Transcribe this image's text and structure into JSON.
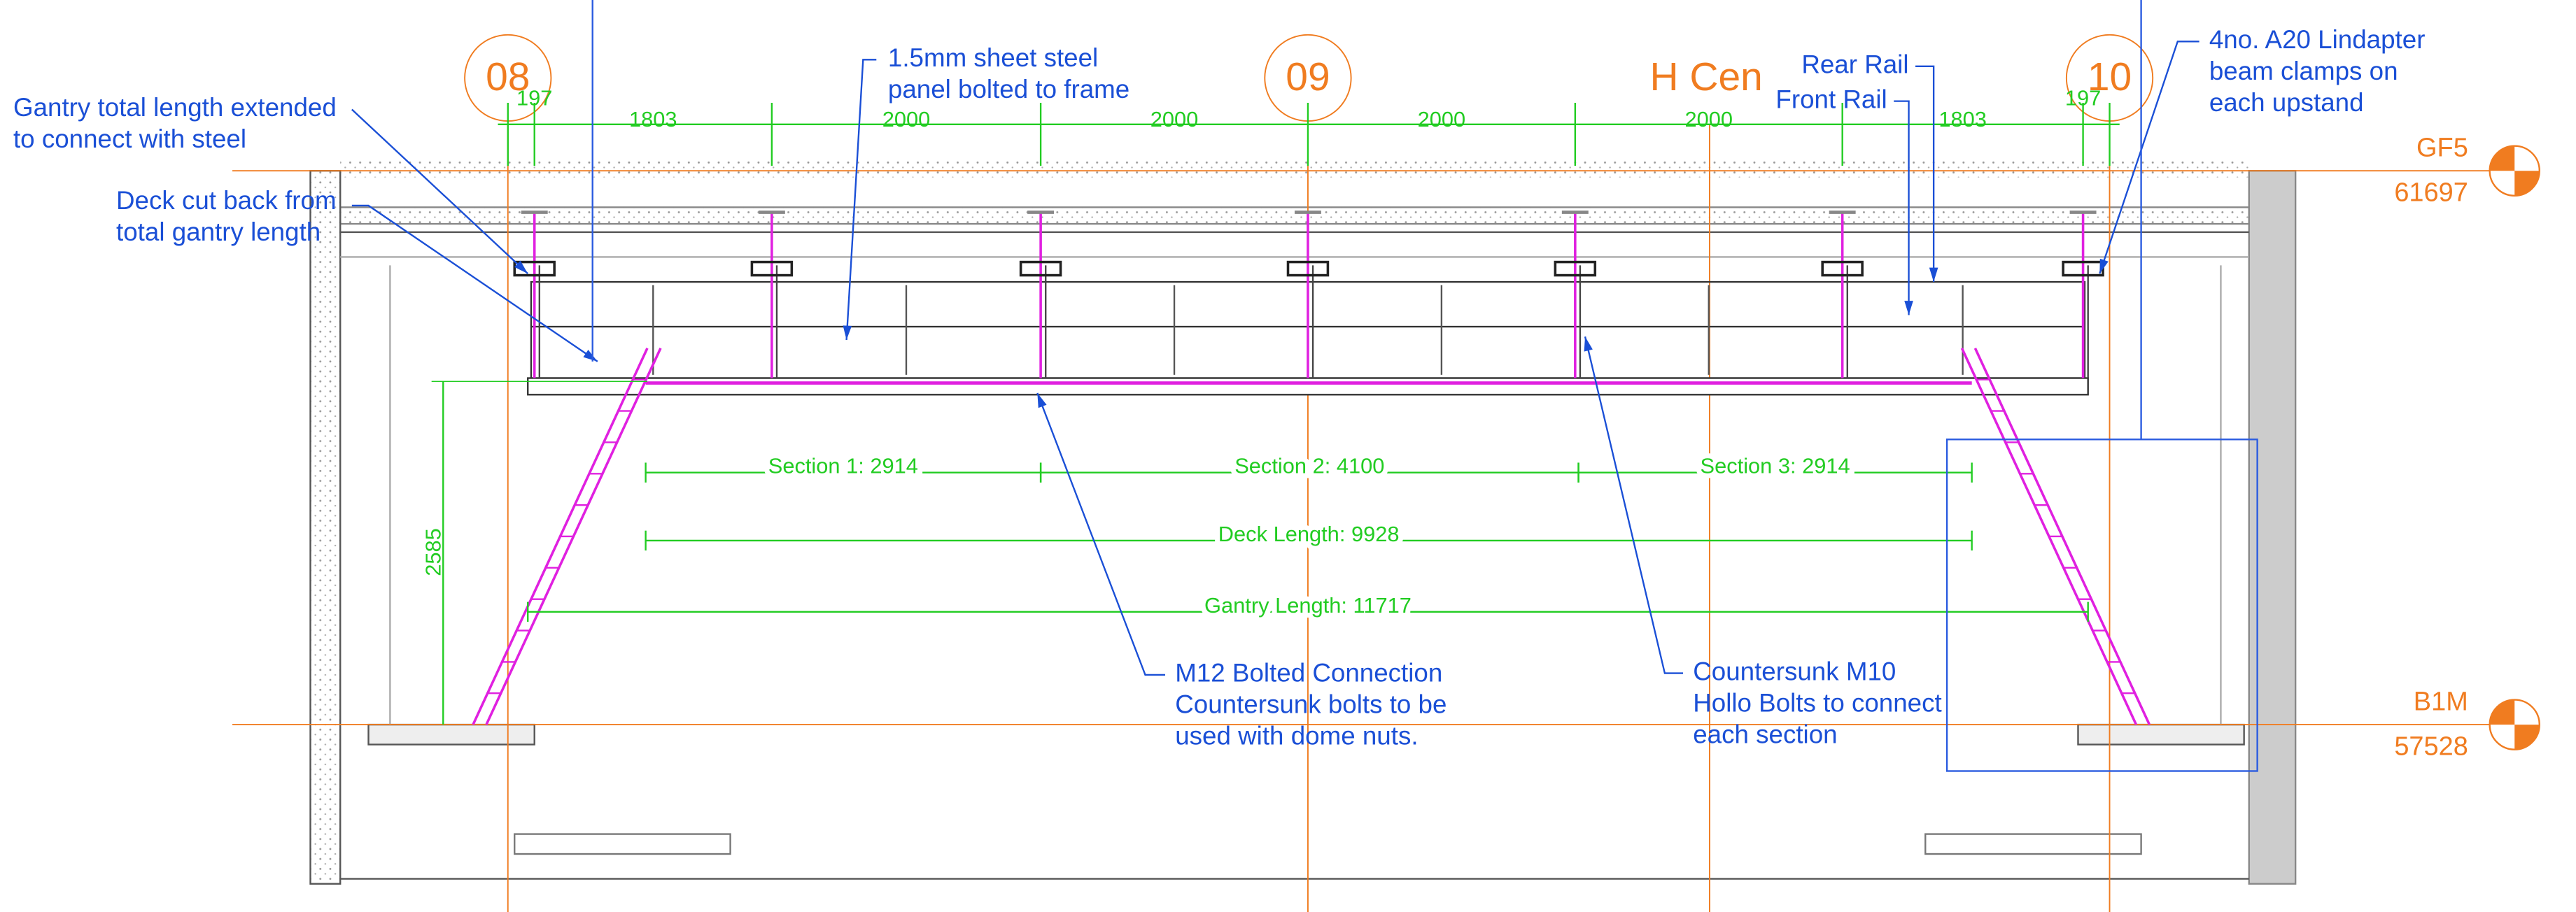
{
  "grid_lines": [
    "08",
    "09",
    "H Cen",
    "10"
  ],
  "levels": [
    {
      "name": "GF5",
      "elevation": "61697"
    },
    {
      "name": "B1M",
      "elevation": "57528"
    }
  ],
  "top_dimensions": [
    "197",
    "1803",
    "2000",
    "2000",
    "2000",
    "2000",
    "1803",
    "197"
  ],
  "dimensions": {
    "vertical": "2585",
    "section_1": "Section 1: 2914",
    "section_2": "Section 2: 4100",
    "section_3": "Section 3: 2914",
    "deck_length": "Deck Length: 9928",
    "gantry_length": "Gantry Length: 11717"
  },
  "annotations": [
    [
      "Gantry total length extended",
      "to connect with steel"
    ],
    [
      "Deck cut back from",
      "total gantry length"
    ],
    [
      "1.5mm sheet steel",
      "panel bolted to frame"
    ],
    [
      "Rear Rail"
    ],
    [
      "Front Rail"
    ],
    [
      "4no. A20 Lindapter",
      "beam clamps on",
      "each upstand"
    ],
    [
      "M12 Bolted Connection",
      "Countersunk bolts to be",
      "used with dome nuts."
    ],
    [
      "Countersunk M10",
      "Hollo Bolts to connect",
      "each section"
    ]
  ]
}
